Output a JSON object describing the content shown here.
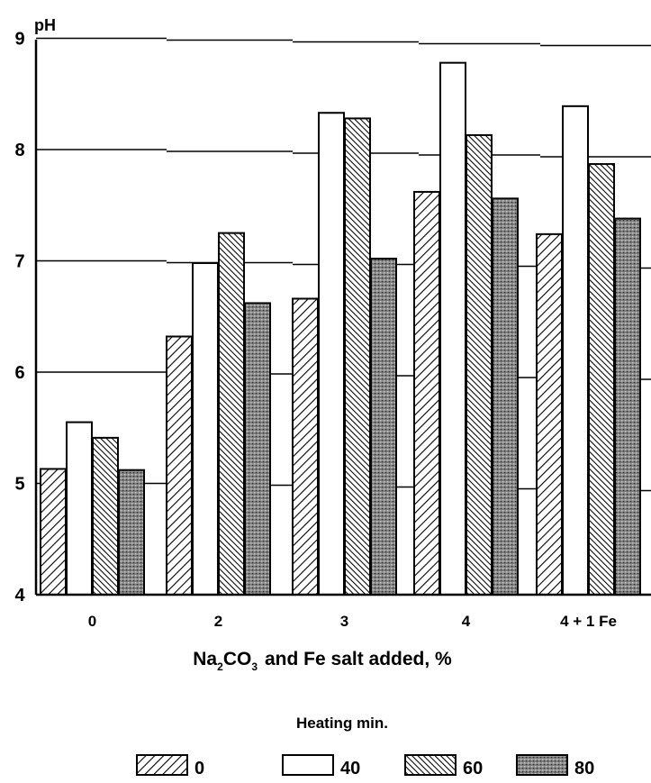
{
  "chart_data": {
    "type": "bar",
    "ylabel": "pH",
    "xlabel": {
      "prefix": "Na",
      "sub1": "2",
      "mid": "CO",
      "sub2": "3",
      "suffix": "and Fe salt added, %"
    },
    "ylim": [
      4,
      9
    ],
    "yticks": [
      "4",
      "5",
      "6",
      "7",
      "8",
      "9"
    ],
    "grid": true,
    "categories": [
      "0",
      "2",
      "3",
      "4",
      "4 + 1 Fe"
    ],
    "legend_title": "Heating min.",
    "legend_placement": "bottom",
    "series": [
      {
        "name": "0",
        "pattern": "hatch-light",
        "values": [
          5.13,
          6.32,
          6.66,
          7.62,
          7.24
        ]
      },
      {
        "name": "40",
        "pattern": "white",
        "values": [
          5.55,
          6.98,
          8.33,
          8.78,
          8.39
        ]
      },
      {
        "name": "60",
        "pattern": "hatch-dense",
        "values": [
          5.41,
          7.25,
          8.28,
          8.13,
          7.87
        ]
      },
      {
        "name": "80",
        "pattern": "stipple",
        "values": [
          5.12,
          6.62,
          7.02,
          7.56,
          7.38
        ]
      }
    ]
  }
}
